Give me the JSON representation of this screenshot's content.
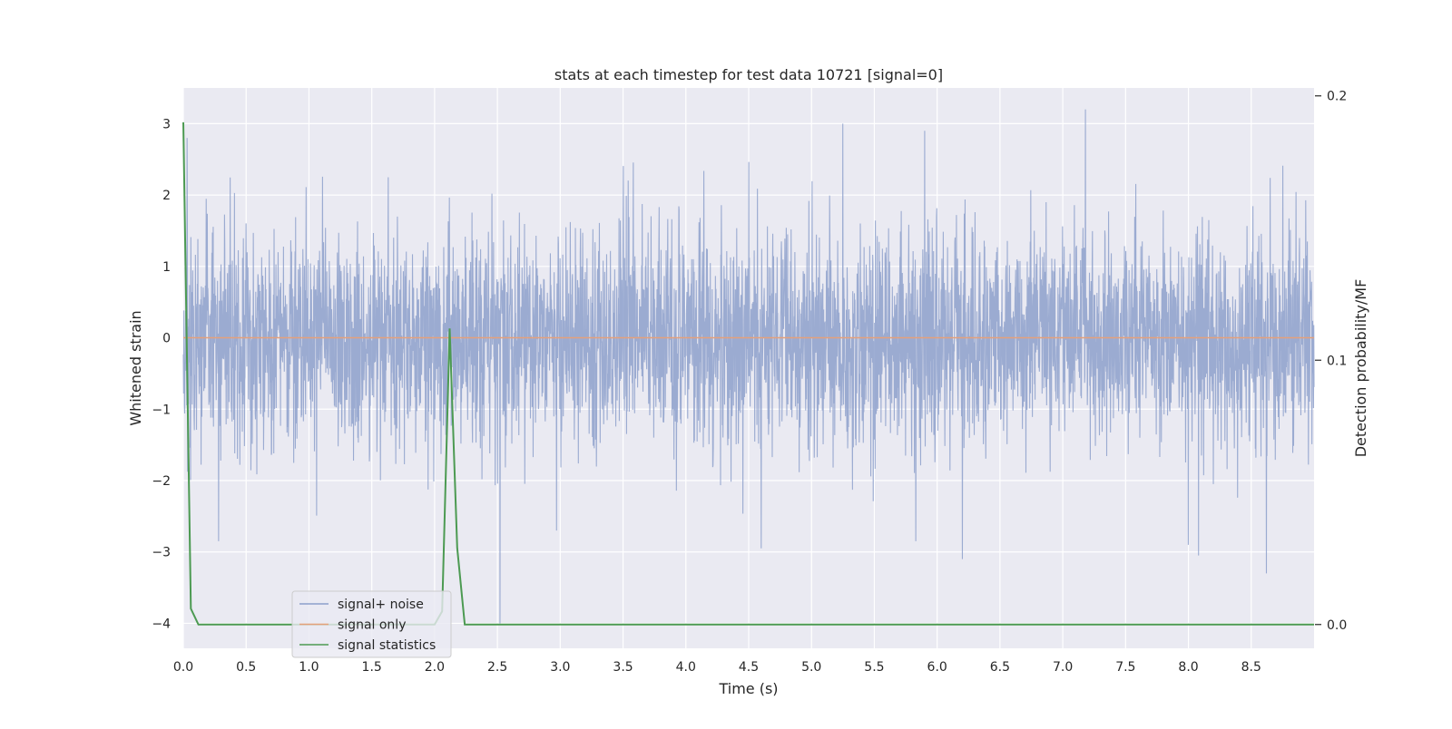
{
  "chart_data": {
    "type": "line",
    "title": "stats at each timestep for test data 10721 [signal=0]",
    "xlabel": "Time (s)",
    "ylabel": "Whitened strain",
    "y2label": "Detection probability/MF",
    "xlim": [
      0.0,
      9.0
    ],
    "ylim": [
      -4.35,
      3.5
    ],
    "y2lim": [
      -0.009,
      0.203
    ],
    "grid": true,
    "legend_position": "lower-left",
    "xticks": [
      0.0,
      0.5,
      1.0,
      1.5,
      2.0,
      2.5,
      3.0,
      3.5,
      4.0,
      4.5,
      5.0,
      5.5,
      6.0,
      6.5,
      7.0,
      7.5,
      8.0,
      8.5
    ],
    "xtick_labels": [
      "0.0",
      "0.5",
      "1.0",
      "1.5",
      "2.0",
      "2.5",
      "3.0",
      "3.5",
      "4.0",
      "4.5",
      "5.0",
      "5.5",
      "6.0",
      "6.5",
      "7.0",
      "7.5",
      "8.0",
      "8.5"
    ],
    "yticks": [
      3,
      2,
      1,
      0,
      -1,
      -2,
      -3,
      -4
    ],
    "ytick_labels": [
      "3",
      "2",
      "1",
      "0",
      "−1",
      "−2",
      "−3",
      "−4"
    ],
    "y2ticks": [
      0.2,
      0.1,
      0.0
    ],
    "y2tick_labels": [
      "0.2",
      "0.1",
      "0.0"
    ],
    "legend": [
      "signal+ noise",
      "signal only",
      "signal statistics"
    ],
    "series": [
      {
        "name": "signal+ noise",
        "axis": "left",
        "color": "#8da0cb",
        "noise_std": 0.75,
        "duration_s": 9.0,
        "peaks": [
          {
            "x": 0.03,
            "y": 2.8
          },
          {
            "x": 5.25,
            "y": 3.0
          },
          {
            "x": 7.18,
            "y": 3.2
          },
          {
            "x": 5.9,
            "y": 2.9
          },
          {
            "x": 2.52,
            "y": -4.0
          },
          {
            "x": 4.6,
            "y": -2.95
          },
          {
            "x": 6.2,
            "y": -3.1
          },
          {
            "x": 8.08,
            "y": -3.05
          },
          {
            "x": 8.62,
            "y": -3.3
          },
          {
            "x": 0.28,
            "y": -2.85
          },
          {
            "x": 2.97,
            "y": -2.7
          },
          {
            "x": 8.0,
            "y": -2.9
          },
          {
            "x": 5.83,
            "y": -2.85
          }
        ]
      },
      {
        "name": "signal only",
        "axis": "left",
        "color": "#e5a07a",
        "x": [
          0.0,
          9.0
        ],
        "y": [
          0.0,
          0.0
        ]
      },
      {
        "name": "signal statistics",
        "axis": "right",
        "color": "#4c9a52",
        "x": [
          0.0,
          0.06,
          0.12,
          2.0,
          2.06,
          2.12,
          2.18,
          2.24,
          9.0
        ],
        "y": [
          0.19,
          0.006,
          0.0,
          0.0,
          0.005,
          0.112,
          0.029,
          0.0,
          0.0
        ]
      }
    ]
  }
}
